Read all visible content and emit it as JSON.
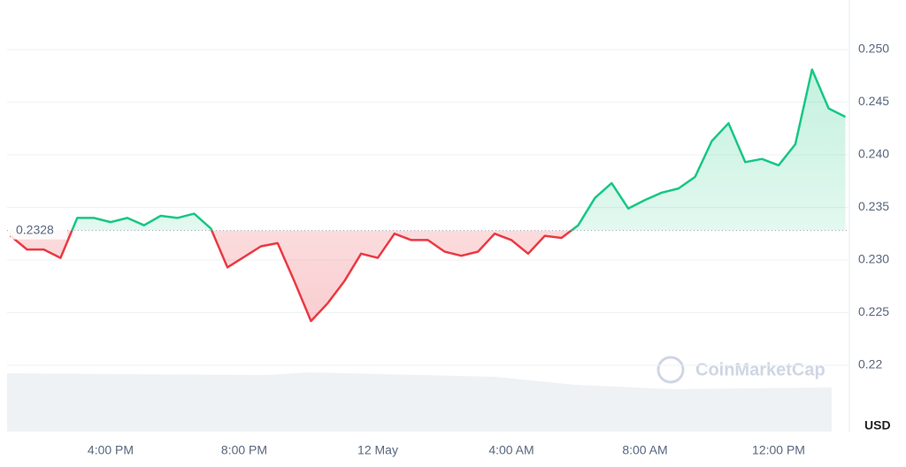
{
  "chart_data": {
    "type": "line",
    "categories": [
      null,
      null,
      null,
      null,
      null,
      null,
      "4:00 PM",
      null,
      null,
      null,
      null,
      null,
      null,
      null,
      "8:00 PM",
      null,
      null,
      null,
      null,
      null,
      null,
      null,
      "12 May",
      null,
      null,
      null,
      null,
      null,
      null,
      null,
      "4:00 AM",
      null,
      null,
      null,
      null,
      null,
      null,
      null,
      "8:00 AM",
      null,
      null,
      null,
      null,
      null,
      null,
      null,
      "12:00 PM",
      null,
      null,
      null,
      null
    ],
    "series": [
      {
        "values": [
          0.2323,
          0.231,
          0.231,
          0.2302,
          0.234,
          0.234,
          0.2336,
          0.234,
          0.2333,
          0.2342,
          0.234,
          0.2344,
          0.233,
          0.2293,
          0.2303,
          0.2313,
          0.2316,
          0.228,
          0.2242,
          0.2259,
          0.228,
          0.2306,
          0.2302,
          0.2325,
          0.2319,
          0.2319,
          0.2308,
          0.2304,
          0.2308,
          0.2325,
          0.2319,
          0.2306,
          0.2323,
          0.2321,
          0.2333,
          0.2359,
          0.2373,
          0.2349,
          0.2357,
          0.2364,
          0.2368,
          0.2379,
          0.2413,
          0.243,
          0.2393,
          0.2396,
          0.239,
          0.241,
          0.2481,
          0.2444,
          0.2436
        ]
      }
    ],
    "baseline": 0.2328,
    "up_color": "#16c784",
    "down_color": "#ea3943",
    "ylim": [
      0.2137,
      0.2547
    ],
    "yticks": [
      0.22,
      {
        "value": 0.225,
        "label": "0.225"
      },
      {
        "value": 0.23,
        "label": "0.230"
      },
      {
        "value": 0.235,
        "label": "0.235"
      },
      {
        "value": 0.24,
        "label": "0.240"
      },
      {
        "value": 0.245,
        "label": "0.245"
      },
      {
        "value": 0.25,
        "label": "0.250"
      }
    ],
    "y_axis_label": "USD",
    "watermark": "CoinMarketCap",
    "grid": true
  }
}
